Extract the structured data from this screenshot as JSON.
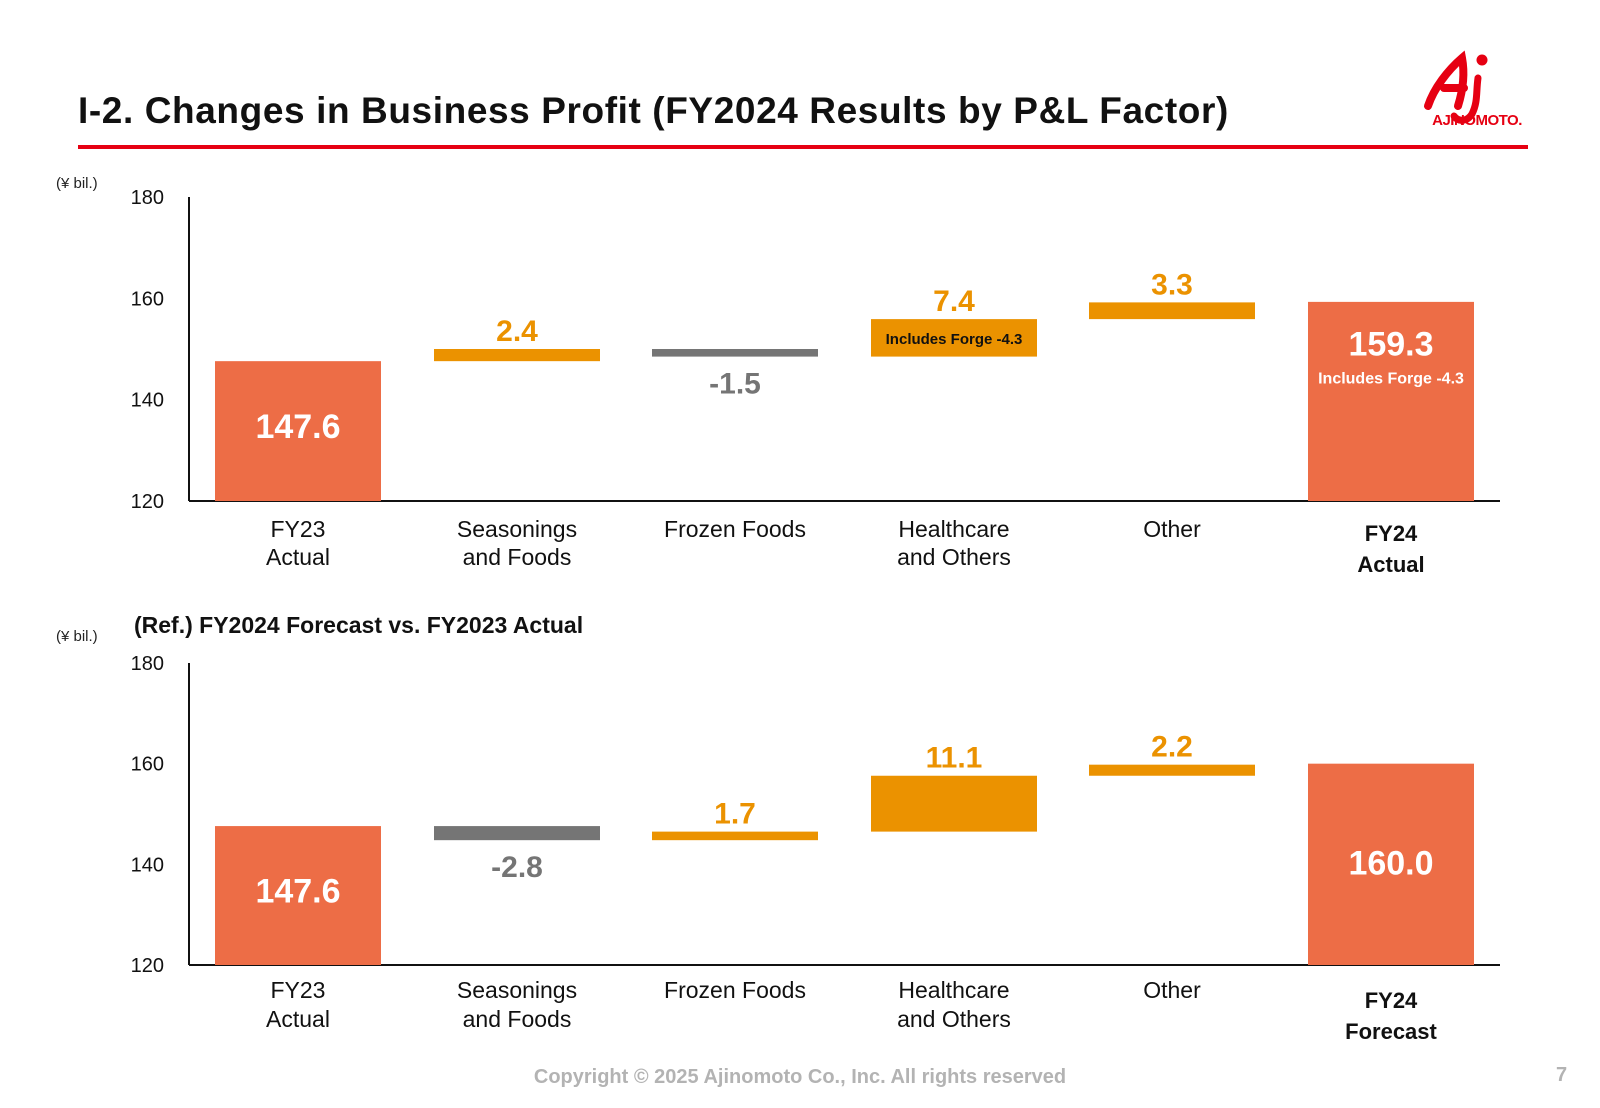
{
  "header": {
    "title": "I-2. Changes in Business Profit (FY2024 Results by P&L Factor)",
    "logo_text": "AJINOMOTO."
  },
  "colors": {
    "total": "#ed6d46",
    "increase": "#eb9200",
    "decrease": "#757575",
    "brand": "#e60012"
  },
  "chart_data": [
    {
      "type": "bar",
      "variant": "waterfall",
      "unit_label": "(¥ bil.)",
      "title": "",
      "ylim": [
        120,
        180
      ],
      "yticks": [
        "120",
        "140",
        "160",
        "180"
      ],
      "categories": [
        [
          "FY23",
          "Actual"
        ],
        [
          "Seasonings",
          "and Foods"
        ],
        [
          "Frozen Foods"
        ],
        [
          "Healthcare",
          "and Others"
        ],
        [
          "Other"
        ],
        [
          "FY24",
          "Actual"
        ]
      ],
      "bold_categories": [
        5
      ],
      "bars": [
        {
          "kind": "total",
          "start": 120,
          "end": 147.6,
          "label": "147.6"
        },
        {
          "kind": "increase",
          "start": 147.6,
          "end": 150.0,
          "label": "2.4"
        },
        {
          "kind": "decrease",
          "start": 150.0,
          "end": 148.5,
          "label": "-1.5"
        },
        {
          "kind": "increase",
          "start": 148.5,
          "end": 155.9,
          "label": "7.4",
          "note": "Includes Forge -4.3"
        },
        {
          "kind": "increase",
          "start": 155.9,
          "end": 159.2,
          "label": "3.3"
        },
        {
          "kind": "total",
          "start": 120,
          "end": 159.3,
          "label": "159.3",
          "note": "Includes Forge -4.3"
        }
      ]
    },
    {
      "type": "bar",
      "variant": "waterfall",
      "unit_label": "(¥ bil.)",
      "title": "(Ref.) FY2024 Forecast vs. FY2023 Actual",
      "ylim": [
        120,
        180
      ],
      "yticks": [
        "120",
        "140",
        "160",
        "180"
      ],
      "categories": [
        [
          "FY23",
          "Actual"
        ],
        [
          "Seasonings",
          "and Foods"
        ],
        [
          "Frozen Foods"
        ],
        [
          "Healthcare",
          "and Others"
        ],
        [
          "Other"
        ],
        [
          "FY24",
          "Forecast"
        ]
      ],
      "bold_categories": [
        5
      ],
      "bars": [
        {
          "kind": "total",
          "start": 120,
          "end": 147.6,
          "label": "147.6"
        },
        {
          "kind": "decrease",
          "start": 147.6,
          "end": 144.8,
          "label": "-2.8"
        },
        {
          "kind": "increase",
          "start": 144.8,
          "end": 146.5,
          "label": "1.7"
        },
        {
          "kind": "increase",
          "start": 146.5,
          "end": 157.6,
          "label": "11.1"
        },
        {
          "kind": "increase",
          "start": 157.6,
          "end": 159.8,
          "label": "2.2"
        },
        {
          "kind": "total",
          "start": 120,
          "end": 160.0,
          "label": "160.0"
        }
      ]
    }
  ],
  "footer": {
    "copyright": "Copyright © 2025 Ajinomoto Co., Inc. All rights reserved",
    "page_number": "7"
  }
}
